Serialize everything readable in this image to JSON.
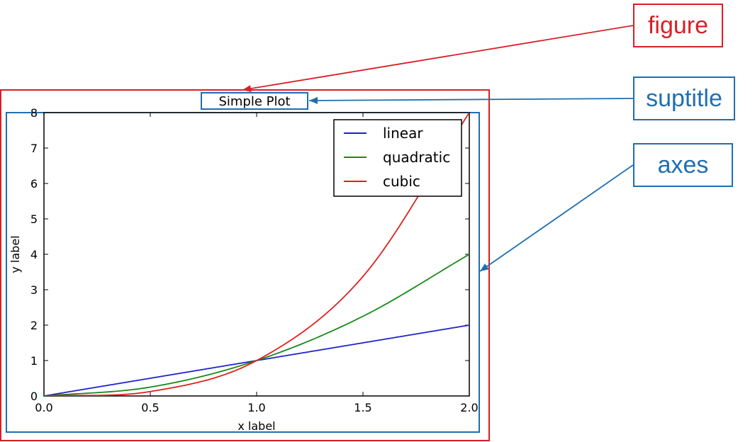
{
  "chart_data": {
    "type": "line",
    "title": "Simple Plot",
    "xlabel": "x label",
    "ylabel": "y label",
    "xlim": [
      0.0,
      2.0
    ],
    "ylim": [
      0,
      8
    ],
    "xticks": [
      "0.0",
      "0.5",
      "1.0",
      "1.5",
      "2.0"
    ],
    "yticks": [
      "0",
      "1",
      "2",
      "3",
      "4",
      "5",
      "6",
      "7",
      "8"
    ],
    "legend_position": "top-right",
    "grid": false,
    "series": [
      {
        "name": "linear",
        "color": "#2020d0",
        "x": [
          0.0,
          0.5,
          1.0,
          1.5,
          2.0
        ],
        "y": [
          0.0,
          0.5,
          1.0,
          1.5,
          2.0
        ]
      },
      {
        "name": "quadratic",
        "color": "#1a8a1a",
        "x": [
          0.0,
          0.5,
          1.0,
          1.5,
          2.0
        ],
        "y": [
          0.0,
          0.25,
          1.0,
          2.25,
          4.0
        ]
      },
      {
        "name": "cubic",
        "color": "#e0201e",
        "x": [
          0.0,
          0.5,
          1.0,
          1.5,
          2.0
        ],
        "y": [
          0.0,
          0.125,
          1.0,
          3.375,
          8.0
        ]
      }
    ]
  },
  "annotations": {
    "figure_label": "figure",
    "suptitle_label": "suptitle",
    "axes_label": "axes",
    "figure_color": "#d91f26",
    "highlight_color": "#1f6fb0"
  }
}
